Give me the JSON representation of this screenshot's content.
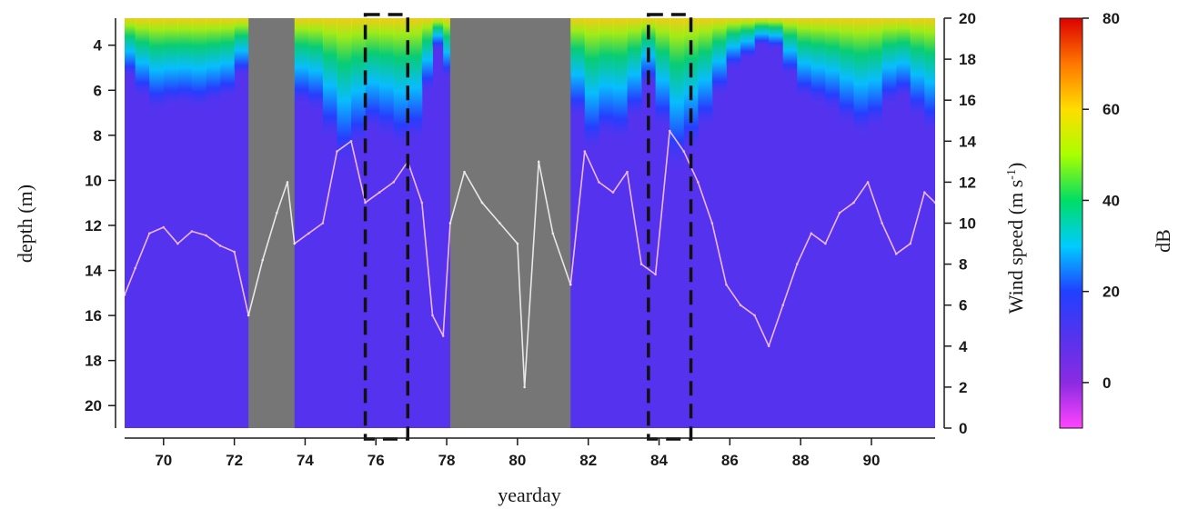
{
  "chart_data": {
    "type": "heatmap",
    "xlabel": "yearday",
    "ylabel": "depth (m)",
    "y2label_main": "Wind speed (m s",
    "y2label_sup": "-1",
    "y2label_end": ")",
    "colorbar_label": "dB",
    "xlim": [
      68.9,
      91.8
    ],
    "ylim": [
      21,
      2.8
    ],
    "y2lim": [
      0,
      20
    ],
    "clim": [
      -10,
      80
    ],
    "x_ticks": [
      "70",
      "72",
      "74",
      "76",
      "78",
      "80",
      "82",
      "84",
      "86",
      "88",
      "90"
    ],
    "y_ticks": [
      "4",
      "6",
      "8",
      "10",
      "12",
      "14",
      "16",
      "18",
      "20"
    ],
    "y2_ticks": [
      "0",
      "2",
      "4",
      "6",
      "8",
      "10",
      "12",
      "14",
      "16",
      "18",
      "20"
    ],
    "colorbar_ticks": [
      "0",
      "20",
      "40",
      "60",
      "80"
    ],
    "colormap": [
      "#ff44ff",
      "#8a2be2",
      "#5533ee",
      "#2040ff",
      "#00ccff",
      "#00dd66",
      "#aaff00",
      "#ffdd00",
      "#ff7700",
      "#dd0000"
    ],
    "background_color": "#5533ee",
    "gap_color": "#767676",
    "gaps_yearday": [
      [
        72.4,
        73.7
      ],
      [
        78.1,
        81.5
      ]
    ],
    "highlight_boxes_yearday": [
      [
        75.7,
        76.9
      ],
      [
        83.7,
        84.9
      ]
    ],
    "wind_speed": {
      "series_color_data": "#eeb7ee",
      "series_color_gap": "#e8e8e8",
      "x": [
        68.9,
        69.2,
        69.6,
        70.0,
        70.4,
        70.8,
        71.2,
        71.6,
        72.0,
        72.4,
        72.8,
        73.2,
        73.5,
        73.7,
        74.1,
        74.5,
        74.9,
        75.3,
        75.7,
        76.1,
        76.5,
        76.9,
        77.3,
        77.6,
        77.9,
        78.1,
        78.5,
        79.0,
        79.5,
        80.0,
        80.2,
        80.6,
        81.0,
        81.5,
        81.9,
        82.3,
        82.7,
        83.1,
        83.5,
        83.9,
        84.3,
        84.7,
        85.1,
        85.5,
        85.9,
        86.3,
        86.7,
        87.1,
        87.5,
        87.9,
        88.3,
        88.7,
        89.1,
        89.5,
        89.9,
        90.3,
        90.7,
        91.1,
        91.5,
        91.8
      ],
      "y": [
        6.5,
        7.8,
        9.5,
        9.8,
        9.0,
        9.6,
        9.4,
        8.9,
        8.6,
        5.5,
        8.2,
        10.5,
        12.0,
        9.0,
        9.5,
        10.0,
        13.5,
        14.0,
        11.0,
        11.5,
        12.0,
        13.0,
        11.0,
        5.5,
        4.5,
        10.0,
        12.5,
        11.0,
        10.0,
        9.0,
        2.0,
        13.0,
        9.5,
        7.0,
        13.5,
        12.0,
        11.5,
        12.5,
        8.0,
        7.5,
        14.5,
        13.5,
        12.0,
        10.0,
        7.0,
        6.0,
        5.5,
        4.0,
        6.0,
        8.0,
        9.5,
        9.0,
        10.5,
        11.0,
        12.0,
        10.0,
        8.5,
        9.0,
        11.5,
        11.0
      ]
    }
  }
}
